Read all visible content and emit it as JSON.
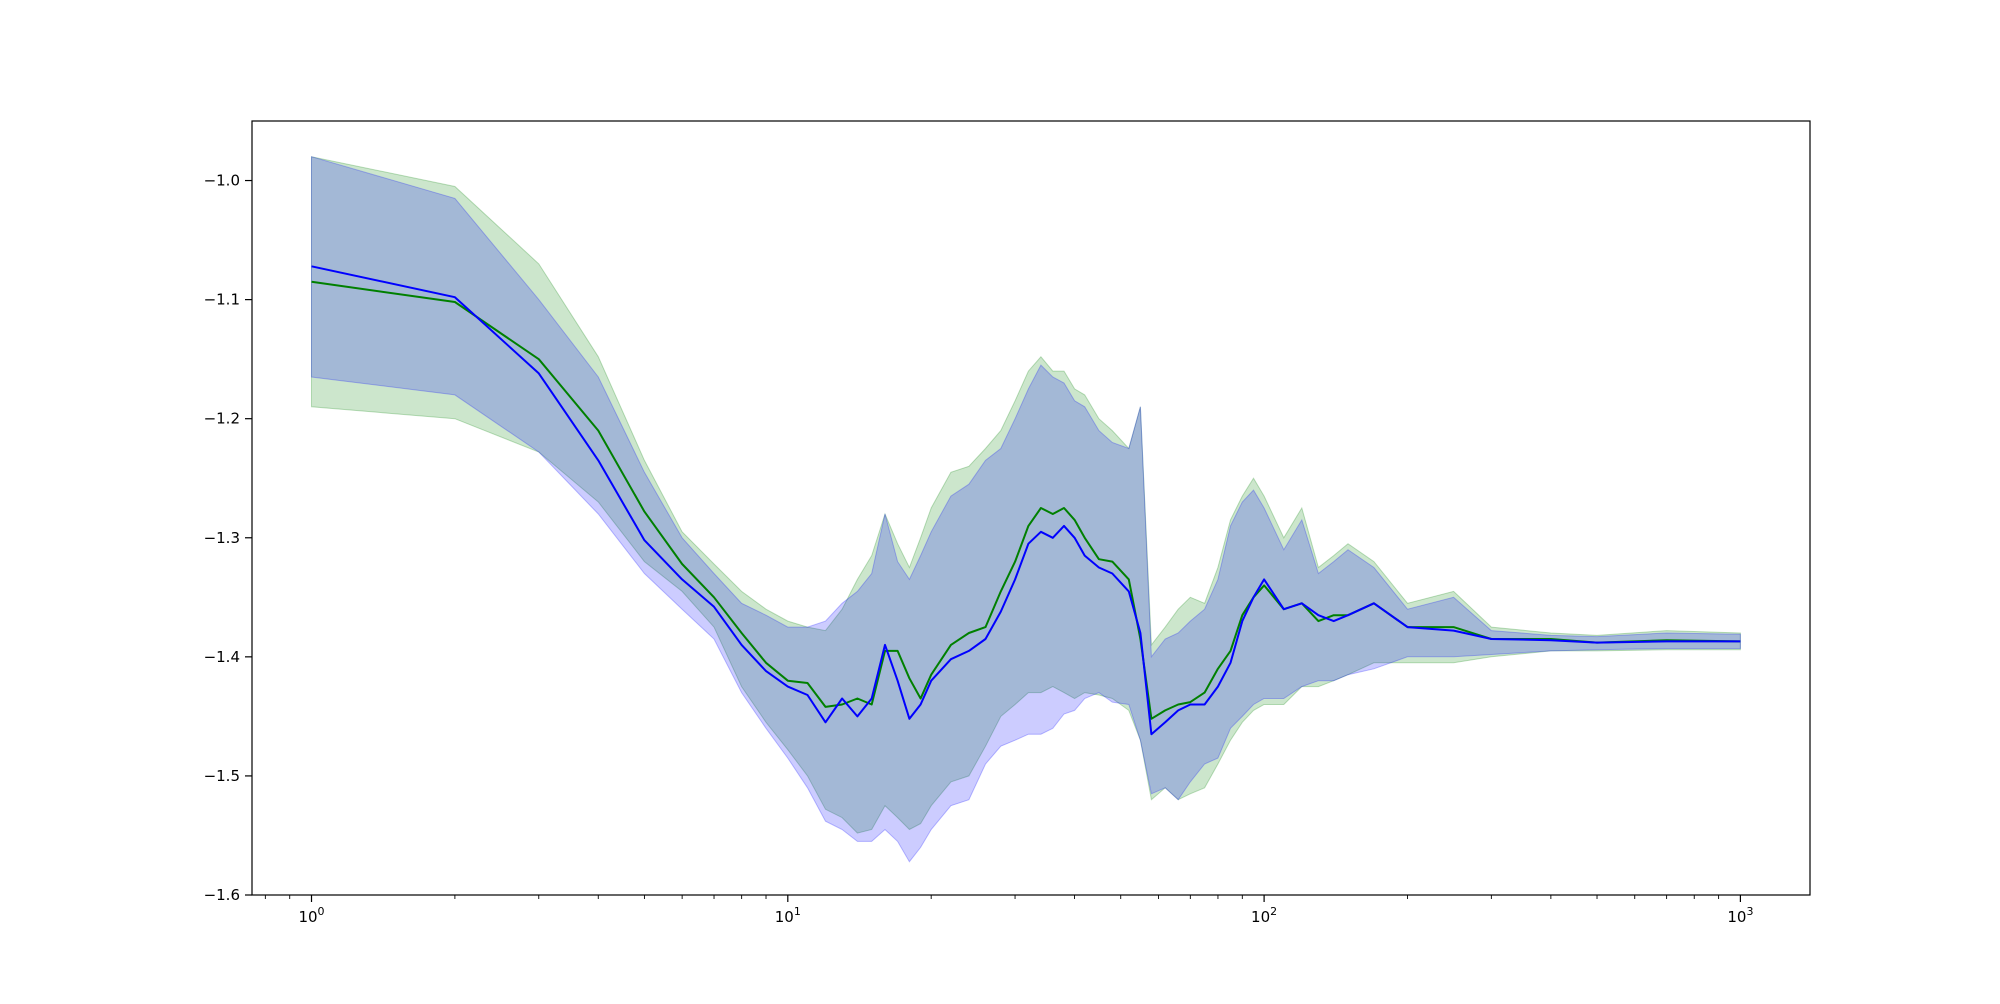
{
  "chart_data": {
    "type": "line",
    "title": "",
    "xlabel": "",
    "ylabel": "",
    "x_scale": "log",
    "xlim": [
      0.75,
      1400
    ],
    "ylim": [
      -1.6,
      -0.95
    ],
    "grid": false,
    "legend": "none",
    "x_tick_labels": [
      {
        "value": 1,
        "base": "10",
        "exp": "0"
      },
      {
        "value": 10,
        "base": "10",
        "exp": "1"
      },
      {
        "value": 100,
        "base": "10",
        "exp": "2"
      },
      {
        "value": 1000,
        "base": "10",
        "exp": "3"
      }
    ],
    "y_ticks": [
      -1.6,
      -1.5,
      -1.4,
      -1.3,
      -1.2,
      -1.1,
      -1.0
    ],
    "y_tick_labels": [
      "−1.6",
      "−1.5",
      "−1.4",
      "−1.3",
      "−1.2",
      "−1.1",
      "−1.0"
    ],
    "series": [
      {
        "color": "#008000",
        "band_color": "#008000",
        "band_opacity": 0.2,
        "x": [
          1,
          2,
          3,
          4,
          5,
          6,
          7,
          8,
          9,
          10,
          11,
          12,
          13,
          14,
          15,
          16,
          17,
          18,
          19,
          20,
          22,
          24,
          26,
          28,
          30,
          32,
          34,
          36,
          38,
          40,
          42,
          45,
          48,
          52,
          55,
          58,
          62,
          66,
          70,
          75,
          80,
          85,
          90,
          95,
          100,
          110,
          120,
          130,
          140,
          150,
          170,
          200,
          250,
          300,
          400,
          500,
          700,
          1000
        ],
        "y": [
          -1.085,
          -1.102,
          -1.15,
          -1.21,
          -1.278,
          -1.322,
          -1.35,
          -1.38,
          -1.405,
          -1.42,
          -1.422,
          -1.442,
          -1.44,
          -1.435,
          -1.44,
          -1.395,
          -1.395,
          -1.418,
          -1.435,
          -1.415,
          -1.39,
          -1.38,
          -1.375,
          -1.345,
          -1.32,
          -1.29,
          -1.275,
          -1.28,
          -1.275,
          -1.285,
          -1.3,
          -1.318,
          -1.32,
          -1.335,
          -1.385,
          -1.452,
          -1.445,
          -1.44,
          -1.438,
          -1.43,
          -1.41,
          -1.395,
          -1.365,
          -1.35,
          -1.34,
          -1.36,
          -1.355,
          -1.37,
          -1.365,
          -1.365,
          -1.355,
          -1.375,
          -1.375,
          -1.385,
          -1.385,
          -1.388,
          -1.386,
          -1.387
        ],
        "lower": [
          -1.19,
          -1.2,
          -1.228,
          -1.27,
          -1.32,
          -1.345,
          -1.375,
          -1.425,
          -1.455,
          -1.478,
          -1.5,
          -1.528,
          -1.535,
          -1.548,
          -1.545,
          -1.525,
          -1.535,
          -1.545,
          -1.54,
          -1.525,
          -1.505,
          -1.5,
          -1.475,
          -1.45,
          -1.44,
          -1.43,
          -1.43,
          -1.425,
          -1.43,
          -1.435,
          -1.43,
          -1.432,
          -1.435,
          -1.445,
          -1.47,
          -1.52,
          -1.51,
          -1.52,
          -1.515,
          -1.51,
          -1.49,
          -1.47,
          -1.455,
          -1.445,
          -1.44,
          -1.44,
          -1.425,
          -1.425,
          -1.42,
          -1.415,
          -1.405,
          -1.405,
          -1.405,
          -1.4,
          -1.395,
          -1.395,
          -1.394,
          -1.394
        ],
        "upper": [
          -0.98,
          -1.005,
          -1.07,
          -1.148,
          -1.235,
          -1.295,
          -1.322,
          -1.345,
          -1.36,
          -1.37,
          -1.375,
          -1.378,
          -1.36,
          -1.335,
          -1.315,
          -1.28,
          -1.305,
          -1.325,
          -1.3,
          -1.275,
          -1.245,
          -1.24,
          -1.225,
          -1.21,
          -1.185,
          -1.16,
          -1.148,
          -1.16,
          -1.16,
          -1.175,
          -1.18,
          -1.2,
          -1.21,
          -1.225,
          -1.19,
          -1.39,
          -1.375,
          -1.36,
          -1.35,
          -1.355,
          -1.325,
          -1.285,
          -1.265,
          -1.25,
          -1.265,
          -1.3,
          -1.275,
          -1.325,
          -1.315,
          -1.305,
          -1.32,
          -1.355,
          -1.345,
          -1.375,
          -1.38,
          -1.382,
          -1.378,
          -1.38
        ]
      },
      {
        "color": "#0000ff",
        "band_color": "#0000ff",
        "band_opacity": 0.2,
        "x": [
          1,
          2,
          3,
          4,
          5,
          6,
          7,
          8,
          9,
          10,
          11,
          12,
          13,
          14,
          15,
          16,
          17,
          18,
          19,
          20,
          22,
          24,
          26,
          28,
          30,
          32,
          34,
          36,
          38,
          40,
          42,
          45,
          48,
          52,
          55,
          58,
          62,
          66,
          70,
          75,
          80,
          85,
          90,
          95,
          100,
          110,
          120,
          130,
          140,
          150,
          170,
          200,
          250,
          300,
          400,
          500,
          700,
          1000
        ],
        "y": [
          -1.072,
          -1.098,
          -1.162,
          -1.235,
          -1.302,
          -1.335,
          -1.358,
          -1.39,
          -1.412,
          -1.425,
          -1.432,
          -1.455,
          -1.435,
          -1.45,
          -1.435,
          -1.39,
          -1.42,
          -1.452,
          -1.44,
          -1.42,
          -1.402,
          -1.395,
          -1.385,
          -1.362,
          -1.335,
          -1.305,
          -1.295,
          -1.3,
          -1.29,
          -1.3,
          -1.315,
          -1.325,
          -1.33,
          -1.345,
          -1.38,
          -1.465,
          -1.455,
          -1.445,
          -1.44,
          -1.44,
          -1.425,
          -1.405,
          -1.37,
          -1.35,
          -1.335,
          -1.36,
          -1.355,
          -1.365,
          -1.37,
          -1.365,
          -1.355,
          -1.375,
          -1.378,
          -1.385,
          -1.386,
          -1.388,
          -1.387,
          -1.387
        ],
        "lower": [
          -1.165,
          -1.18,
          -1.228,
          -1.28,
          -1.33,
          -1.36,
          -1.385,
          -1.43,
          -1.46,
          -1.485,
          -1.51,
          -1.538,
          -1.545,
          -1.555,
          -1.555,
          -1.545,
          -1.555,
          -1.572,
          -1.56,
          -1.545,
          -1.525,
          -1.52,
          -1.49,
          -1.475,
          -1.47,
          -1.465,
          -1.465,
          -1.46,
          -1.448,
          -1.445,
          -1.435,
          -1.43,
          -1.438,
          -1.44,
          -1.47,
          -1.515,
          -1.51,
          -1.52,
          -1.505,
          -1.49,
          -1.485,
          -1.46,
          -1.45,
          -1.44,
          -1.435,
          -1.435,
          -1.425,
          -1.42,
          -1.42,
          -1.415,
          -1.41,
          -1.4,
          -1.4,
          -1.398,
          -1.395,
          -1.394,
          -1.393,
          -1.393
        ],
        "upper": [
          -0.98,
          -1.015,
          -1.1,
          -1.165,
          -1.245,
          -1.3,
          -1.33,
          -1.355,
          -1.365,
          -1.375,
          -1.375,
          -1.37,
          -1.355,
          -1.345,
          -1.33,
          -1.28,
          -1.32,
          -1.335,
          -1.315,
          -1.295,
          -1.265,
          -1.255,
          -1.235,
          -1.225,
          -1.2,
          -1.175,
          -1.155,
          -1.165,
          -1.17,
          -1.185,
          -1.19,
          -1.21,
          -1.22,
          -1.225,
          -1.19,
          -1.4,
          -1.385,
          -1.38,
          -1.37,
          -1.36,
          -1.335,
          -1.29,
          -1.27,
          -1.26,
          -1.275,
          -1.31,
          -1.285,
          -1.33,
          -1.32,
          -1.31,
          -1.325,
          -1.36,
          -1.35,
          -1.378,
          -1.382,
          -1.383,
          -1.38,
          -1.381
        ]
      }
    ]
  }
}
